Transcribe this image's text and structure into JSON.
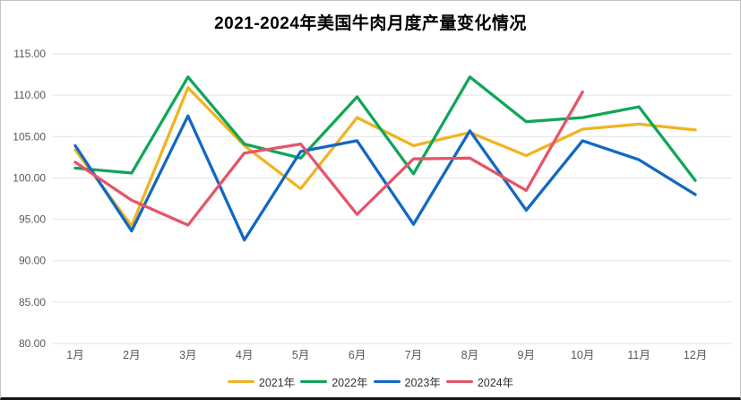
{
  "chart": {
    "title": "2021-2024年美国牛肉月度产量变化情况"
  },
  "chart_data": {
    "type": "line",
    "title": "2021-2024年美国牛肉月度产量变化情况",
    "categories": [
      "1月",
      "2月",
      "3月",
      "4月",
      "5月",
      "6月",
      "7月",
      "8月",
      "9月",
      "10月",
      "11月",
      "12月"
    ],
    "series": [
      {
        "name": "2021年",
        "color": "#F0B323",
        "values": [
          103.4,
          94.2,
          110.9,
          103.9,
          98.7,
          107.3,
          103.9,
          105.5,
          102.7,
          105.9,
          106.5,
          105.8
        ]
      },
      {
        "name": "2022年",
        "color": "#10A659",
        "values": [
          101.2,
          100.6,
          112.2,
          104.1,
          102.4,
          109.8,
          100.5,
          112.2,
          106.8,
          107.3,
          108.6,
          99.7
        ]
      },
      {
        "name": "2023年",
        "color": "#1268C3",
        "values": [
          103.9,
          93.6,
          107.5,
          92.5,
          103.2,
          104.5,
          94.4,
          105.7,
          96.1,
          104.5,
          102.2,
          98.0
        ]
      },
      {
        "name": "2024年",
        "color": "#E4556A",
        "values": [
          101.9,
          97.3,
          94.3,
          103.0,
          104.1,
          95.6,
          102.3,
          102.4,
          98.5,
          110.4
        ]
      }
    ],
    "xlabel": "",
    "ylabel": "",
    "ylim": [
      80,
      115
    ],
    "ytick_step": 5,
    "ytick_decimals": 2,
    "grid": true,
    "legend_position": "bottom"
  }
}
